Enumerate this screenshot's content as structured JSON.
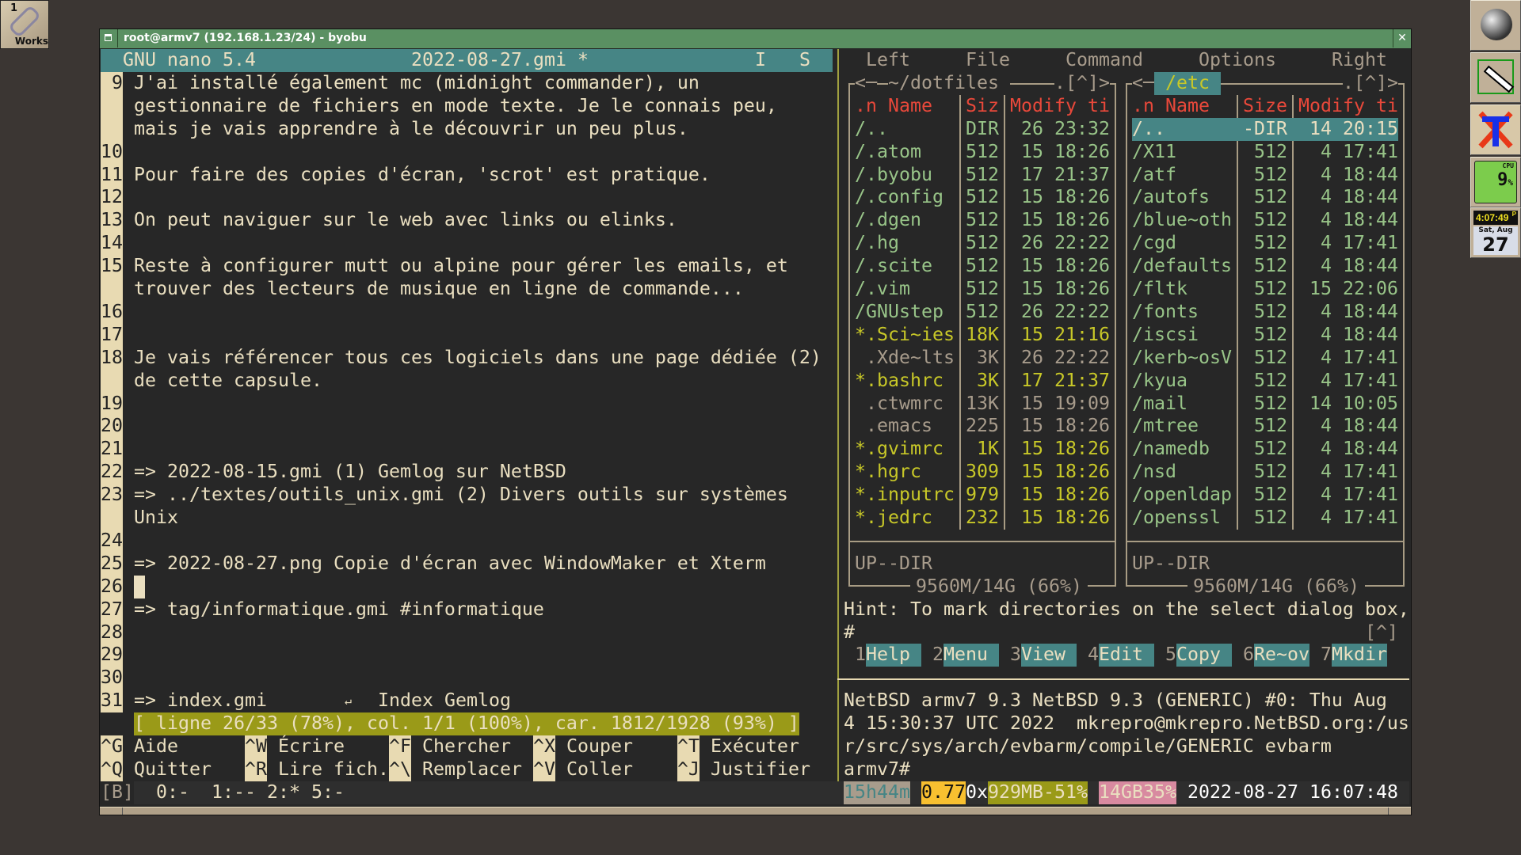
{
  "desktop": {
    "workspace_number": "1",
    "workspace_label": "Works"
  },
  "dock": {
    "clock_time": "4:07:49",
    "clock_ampm": "P",
    "date_day": "Sat, Aug",
    "date_num": "27",
    "cpu_value": "9",
    "cpu_label": "CPU",
    "cpu_unit": "%"
  },
  "window": {
    "title": "root@armv7 (192.168.1.23/24) - byobu",
    "close": "✕"
  },
  "nano": {
    "app": "GNU nano 5.4",
    "filename": "2022-08-27.gmi *",
    "flag_i": "I",
    "flag_s": "S",
    "lines": [
      {
        "num": "9",
        "text": "J'ai installé également mc (midnight commander), un"
      },
      {
        "num": "",
        "text": "gestionnaire de fichiers en mode texte. Je le connais peu,"
      },
      {
        "num": "",
        "text": "mais je vais apprendre à le découvrir un peu plus."
      },
      {
        "num": "10",
        "text": ""
      },
      {
        "num": "11",
        "text": "Pour faire des copies d'écran, 'scrot' est pratique."
      },
      {
        "num": "12",
        "text": ""
      },
      {
        "num": "13",
        "text": "On peut naviguer sur le web avec links ou elinks."
      },
      {
        "num": "14",
        "text": ""
      },
      {
        "num": "15",
        "text": "Reste à configurer mutt ou alpine pour gérer les emails, et"
      },
      {
        "num": "",
        "text": "trouver des lecteurs de musique en ligne de commande..."
      },
      {
        "num": "16",
        "text": ""
      },
      {
        "num": "17",
        "text": ""
      },
      {
        "num": "18",
        "text": "Je vais référencer tous ces logiciels dans une page dédiée (2)"
      },
      {
        "num": "",
        "text": "de cette capsule."
      },
      {
        "num": "19",
        "text": ""
      },
      {
        "num": "20",
        "text": ""
      },
      {
        "num": "21",
        "text": ""
      },
      {
        "num": "22",
        "text": "=> 2022-08-15.gmi (1) Gemlog sur NetBSD"
      },
      {
        "num": "23",
        "text": "=> ../textes/outils_unix.gmi (2) Divers outils sur systèmes"
      },
      {
        "num": "",
        "text": "Unix"
      },
      {
        "num": "24",
        "text": ""
      },
      {
        "num": "25",
        "text": "=> 2022-08-27.png Copie d'écran avec WindowMaker et Xterm"
      },
      {
        "num": "26",
        "text": ""
      },
      {
        "num": "27",
        "text": "=> tag/informatique.gmi #informatique"
      },
      {
        "num": "28",
        "text": ""
      },
      {
        "num": "29",
        "text": ""
      },
      {
        "num": "30",
        "text": ""
      },
      {
        "num": "31",
        "text": "=> index.gmi"
      }
    ],
    "tab_glyph": "↵",
    "line31_label": "Index Gemlog",
    "status": "[ ligne 26/33 (78%), col. 1/1 (100%), car. 1812/1928 (93%) ]",
    "shortcuts": [
      [
        {
          "key": "^G",
          "label": "Aide"
        },
        {
          "key": "^W",
          "label": "Écrire"
        },
        {
          "key": "^F",
          "label": "Chercher"
        },
        {
          "key": "^X",
          "label": "Couper"
        },
        {
          "key": "^T",
          "label": "Exécuter"
        }
      ],
      [
        {
          "key": "^Q",
          "label": "Quitter"
        },
        {
          "key": "^R",
          "label": "Lire fich."
        },
        {
          "key": "^\\",
          "label": "Remplacer"
        },
        {
          "key": "^V",
          "label": "Coller"
        },
        {
          "key": "^J",
          "label": "Justifier"
        }
      ]
    ]
  },
  "mc": {
    "menu": [
      "Left",
      "File",
      "Command",
      "Options",
      "Right"
    ],
    "left_panel": {
      "path": "~/dotfiles",
      "path_suffix": ".[^]>",
      "path_prefix": "<─",
      "headers": [
        ".n Name",
        "Siz",
        "Modify ti"
      ],
      "files": [
        {
          "name": "/..",
          "size": "DIR",
          "mtime": "26 23:32",
          "type": "dir"
        },
        {
          "name": "/.atom",
          "size": "512",
          "mtime": "15 18:26",
          "type": "dir"
        },
        {
          "name": "/.byobu",
          "size": "512",
          "mtime": "17 21:37",
          "type": "dir"
        },
        {
          "name": "/.config",
          "size": "512",
          "mtime": "15 18:26",
          "type": "dir"
        },
        {
          "name": "/.dgen",
          "size": "512",
          "mtime": "15 18:26",
          "type": "dir"
        },
        {
          "name": "/.hg",
          "size": "512",
          "mtime": "26 22:22",
          "type": "dir"
        },
        {
          "name": "/.scite",
          "size": "512",
          "mtime": "15 18:26",
          "type": "dir"
        },
        {
          "name": "/.vim",
          "size": "512",
          "mtime": "15 18:26",
          "type": "dir"
        },
        {
          "name": "/GNUstep",
          "size": "512",
          "mtime": "26 22:22",
          "type": "dir"
        },
        {
          "name": "*.Sci~ies",
          "size": "18K",
          "mtime": "15 21:16",
          "type": "exec"
        },
        {
          "name": " .Xde~lts",
          "size": "3K",
          "mtime": "26 22:22",
          "type": "file"
        },
        {
          "name": "*.bashrc",
          "size": "3K",
          "mtime": "17 21:37",
          "type": "exec"
        },
        {
          "name": " .ctwmrc",
          "size": "13K",
          "mtime": "15 19:09",
          "type": "file"
        },
        {
          "name": " .emacs",
          "size": "225",
          "mtime": "15 18:26",
          "type": "file"
        },
        {
          "name": "*.gvimrc",
          "size": "1K",
          "mtime": "15 18:26",
          "type": "exec"
        },
        {
          "name": "*.hgrc",
          "size": "309",
          "mtime": "15 18:26",
          "type": "exec"
        },
        {
          "name": "*.inputrc",
          "size": "979",
          "mtime": "15 18:26",
          "type": "exec"
        },
        {
          "name": "*.jedrc",
          "size": "232",
          "mtime": "15 18:26",
          "type": "exec"
        }
      ],
      "mini_status": "UP--DIR",
      "disk": "9560M/14G (66%)"
    },
    "right_panel": {
      "path": "/etc",
      "path_suffix": ".[^]>",
      "path_prefix": "<─",
      "headers": [
        ".n Name",
        "Size",
        "Modify ti"
      ],
      "files": [
        {
          "name": "/..",
          "size": "-DIR",
          "mtime": "14 20:15",
          "type": "dir",
          "selected": true
        },
        {
          "name": "/X11",
          "size": "512",
          "mtime": "4 17:41",
          "type": "dir"
        },
        {
          "name": "/atf",
          "size": "512",
          "mtime": "4 18:44",
          "type": "dir"
        },
        {
          "name": "/autofs",
          "size": "512",
          "mtime": "4 18:44",
          "type": "dir"
        },
        {
          "name": "/blue~oth",
          "size": "512",
          "mtime": "4 18:44",
          "type": "dir"
        },
        {
          "name": "/cgd",
          "size": "512",
          "mtime": "4 17:41",
          "type": "dir"
        },
        {
          "name": "/defaults",
          "size": "512",
          "mtime": "4 18:44",
          "type": "dir"
        },
        {
          "name": "/fltk",
          "size": "512",
          "mtime": "15 22:06",
          "type": "dir"
        },
        {
          "name": "/fonts",
          "size": "512",
          "mtime": "4 18:44",
          "type": "dir"
        },
        {
          "name": "/iscsi",
          "size": "512",
          "mtime": "4 18:44",
          "type": "dir"
        },
        {
          "name": "/kerb~osV",
          "size": "512",
          "mtime": "4 17:41",
          "type": "dir"
        },
        {
          "name": "/kyua",
          "size": "512",
          "mtime": "4 17:41",
          "type": "dir"
        },
        {
          "name": "/mail",
          "size": "512",
          "mtime": "14 10:05",
          "type": "dir"
        },
        {
          "name": "/mtree",
          "size": "512",
          "mtime": "4 18:44",
          "type": "dir"
        },
        {
          "name": "/namedb",
          "size": "512",
          "mtime": "4 18:44",
          "type": "dir"
        },
        {
          "name": "/nsd",
          "size": "512",
          "mtime": "4 17:41",
          "type": "dir"
        },
        {
          "name": "/openldap",
          "size": "512",
          "mtime": "4 17:41",
          "type": "dir"
        },
        {
          "name": "/openssl",
          "size": "512",
          "mtime": "4 17:41",
          "type": "dir"
        }
      ],
      "mini_status": "UP--DIR",
      "disk": "9560M/14G (66%)"
    },
    "hint": "Hint: To mark directories on the select dialog box,",
    "prompt": "#",
    "prompt_history": "[^]",
    "fkeys": [
      {
        "num": "1",
        "label": "Help"
      },
      {
        "num": "2",
        "label": "Menu"
      },
      {
        "num": "3",
        "label": "View"
      },
      {
        "num": "4",
        "label": "Edit"
      },
      {
        "num": "5",
        "label": "Copy"
      },
      {
        "num": "6",
        "label": "Re~ov"
      },
      {
        "num": "7",
        "label": "Mkdir"
      }
    ]
  },
  "shell": {
    "lines": [
      "NetBSD armv7 9.3 NetBSD 9.3 (GENERIC) #0: Thu Aug",
      "4 15:30:37 UTC 2022  mkrepro@mkrepro.NetBSD.org:/us",
      "r/src/sys/arch/evbarm/compile/GENERIC evbarm",
      "armv7#"
    ]
  },
  "byobu": {
    "session": "[B]",
    "windows": "0:-  1:-- 2:* 5:-",
    "uptime": "15h44m",
    "load": "0.77",
    "mem_prefix": "0x",
    "memory": "929MB-51%",
    "disk": "14GB35%",
    "datetime": "2022-08-27 16:07:48",
    "colors": {
      "uptime_bg": "#a89c8c",
      "load_bg": "#f8c030",
      "memory_bg": "#9a9a18",
      "disk_bg": "#d88aa0"
    }
  }
}
